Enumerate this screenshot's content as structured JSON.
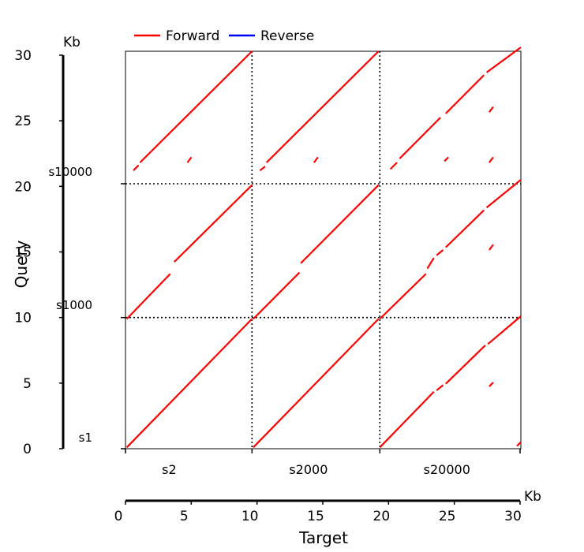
{
  "chart_data": {
    "type": "dotplot",
    "legend": [
      {
        "name": "Forward",
        "color": "#ff0000"
      },
      {
        "name": "Reverse",
        "color": "#0000ff"
      }
    ],
    "xlabel": "Target",
    "ylabel": "Query",
    "x_unit": "Kb",
    "y_unit": "Kb",
    "xlim": [
      0,
      30
    ],
    "ylim": [
      0,
      30
    ],
    "xticks": [
      0,
      5,
      10,
      15,
      20,
      25,
      30
    ],
    "yticks": [
      0,
      5,
      10,
      15,
      20,
      25,
      30
    ],
    "target_sequences": [
      {
        "name": "s2",
        "start": 0,
        "end": 9.6
      },
      {
        "name": "s2000",
        "start": 9.6,
        "end": 19.3
      },
      {
        "name": "s20000",
        "start": 19.3,
        "end": 30
      }
    ],
    "query_sequences": [
      {
        "name": "s1",
        "start": 0,
        "end": 9.9
      },
      {
        "name": "s1000",
        "start": 9.9,
        "end": 20.0
      },
      {
        "name": "s10000",
        "start": 20.0,
        "end": 30
      }
    ],
    "segments": [
      {
        "strand": "forward",
        "x": [
          0.1,
          9.6
        ],
        "y": [
          0.1,
          9.8
        ]
      },
      {
        "strand": "forward",
        "x": [
          9.7,
          19.2
        ],
        "y": [
          0.1,
          9.8
        ]
      },
      {
        "strand": "forward",
        "x": [
          19.3,
          23.4
        ],
        "y": [
          0.1,
          4.3
        ]
      },
      {
        "strand": "forward",
        "x": [
          23.6,
          24.1
        ],
        "y": [
          4.4,
          4.8
        ]
      },
      {
        "strand": "forward",
        "x": [
          24.3,
          27.3
        ],
        "y": [
          4.9,
          7.8
        ]
      },
      {
        "strand": "forward",
        "x": [
          27.5,
          30.0
        ],
        "y": [
          7.9,
          10.0
        ]
      },
      {
        "strand": "forward",
        "x": [
          27.6,
          27.9
        ],
        "y": [
          4.7,
          5.0
        ]
      },
      {
        "strand": "forward",
        "x": [
          29.7,
          30.0
        ],
        "y": [
          0.2,
          0.5
        ]
      },
      {
        "strand": "forward",
        "x": [
          0.1,
          3.4
        ],
        "y": [
          9.8,
          13.2
        ]
      },
      {
        "strand": "forward",
        "x": [
          3.7,
          9.6
        ],
        "y": [
          14.1,
          19.9
        ]
      },
      {
        "strand": "forward",
        "x": [
          9.7,
          13.2
        ],
        "y": [
          9.8,
          13.3
        ]
      },
      {
        "strand": "forward",
        "x": [
          13.3,
          19.2
        ],
        "y": [
          14.0,
          19.9
        ]
      },
      {
        "strand": "forward",
        "x": [
          19.3,
          22.8
        ],
        "y": [
          9.8,
          13.2
        ]
      },
      {
        "strand": "forward",
        "x": [
          22.9,
          23.4
        ],
        "y": [
          13.6,
          14.4
        ]
      },
      {
        "strand": "forward",
        "x": [
          23.6,
          24.1
        ],
        "y": [
          14.6,
          15.0
        ]
      },
      {
        "strand": "forward",
        "x": [
          24.3,
          27.2
        ],
        "y": [
          15.2,
          18.0
        ]
      },
      {
        "strand": "forward",
        "x": [
          27.4,
          30.0
        ],
        "y": [
          18.2,
          20.3
        ]
      },
      {
        "strand": "forward",
        "x": [
          27.6,
          27.9
        ],
        "y": [
          15.0,
          15.4
        ]
      },
      {
        "strand": "forward",
        "x": [
          0.6,
          1.0
        ],
        "y": [
          21.0,
          21.4
        ]
      },
      {
        "strand": "forward",
        "x": [
          1.1,
          9.6
        ],
        "y": [
          21.6,
          30.0
        ]
      },
      {
        "strand": "forward",
        "x": [
          4.7,
          5.0
        ],
        "y": [
          21.6,
          22.0
        ]
      },
      {
        "strand": "forward",
        "x": [
          10.2,
          10.6
        ],
        "y": [
          21.0,
          21.3
        ]
      },
      {
        "strand": "forward",
        "x": [
          10.7,
          19.2
        ],
        "y": [
          21.6,
          30.0
        ]
      },
      {
        "strand": "forward",
        "x": [
          14.3,
          14.6
        ],
        "y": [
          21.6,
          22.0
        ]
      },
      {
        "strand": "forward",
        "x": [
          20.1,
          20.6
        ],
        "y": [
          21.1,
          21.6
        ]
      },
      {
        "strand": "forward",
        "x": [
          20.8,
          23.9
        ],
        "y": [
          21.9,
          25.0
        ]
      },
      {
        "strand": "forward",
        "x": [
          24.3,
          27.2
        ],
        "y": [
          25.3,
          28.2
        ]
      },
      {
        "strand": "forward",
        "x": [
          27.4,
          30.0
        ],
        "y": [
          28.4,
          30.3
        ]
      },
      {
        "strand": "forward",
        "x": [
          24.2,
          24.5
        ],
        "y": [
          21.7,
          22.0
        ]
      },
      {
        "strand": "forward",
        "x": [
          27.6,
          27.9
        ],
        "y": [
          21.6,
          22.0
        ]
      },
      {
        "strand": "forward",
        "x": [
          27.6,
          27.9
        ],
        "y": [
          25.4,
          25.8
        ]
      }
    ]
  }
}
